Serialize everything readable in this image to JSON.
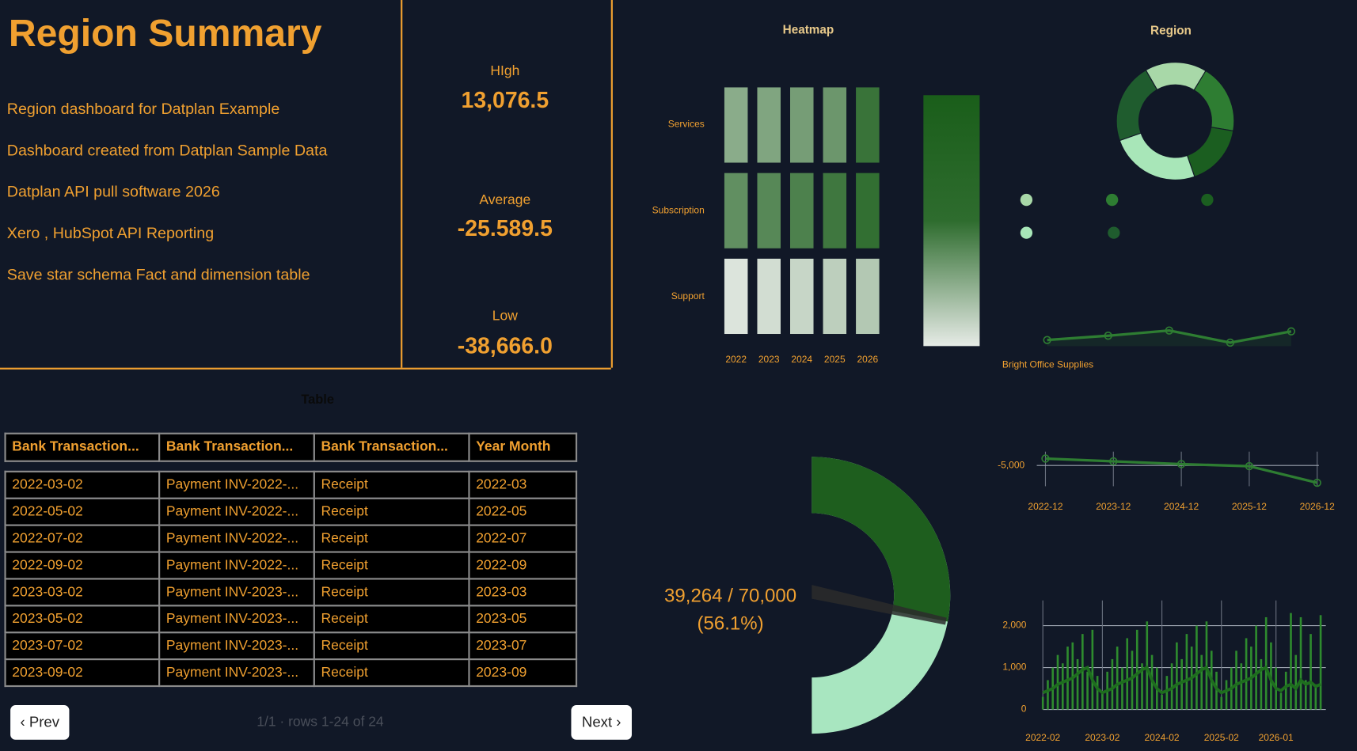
{
  "summary": {
    "title": "Region Summary",
    "lines": [
      "Region dashboard for Datplan Example",
      "Dashboard created from Datplan Sample Data",
      "Datplan API pull software 2026",
      "Xero , HubSpot API Reporting",
      "Save star schema Fact and dimension table"
    ]
  },
  "kpis": [
    {
      "label": "HIgh",
      "value": "13,076.5"
    },
    {
      "label": "Average",
      "value": "-25.589.5"
    },
    {
      "label": "Low",
      "value": "-38,666.0"
    }
  ],
  "table": {
    "title": "Table",
    "columns": [
      "Bank Transaction...",
      "Bank Transaction...",
      "Bank Transaction...",
      "Year Month"
    ],
    "rows": [
      [
        "2022-03-02",
        "Payment INV-2022-...",
        "Receipt",
        "2022-03"
      ],
      [
        "2022-05-02",
        "Payment INV-2022-...",
        "Receipt",
        "2022-05"
      ],
      [
        "2022-07-02",
        "Payment INV-2022-...",
        "Receipt",
        "2022-07"
      ],
      [
        "2022-09-02",
        "Payment INV-2022-...",
        "Receipt",
        "2022-09"
      ],
      [
        "2023-03-02",
        "Payment INV-2023-...",
        "Receipt",
        "2023-03"
      ],
      [
        "2023-05-02",
        "Payment INV-2023-...",
        "Receipt",
        "2023-05"
      ],
      [
        "2023-07-02",
        "Payment INV-2023-...",
        "Receipt",
        "2023-07"
      ],
      [
        "2023-09-02",
        "Payment INV-2023-...",
        "Receipt",
        "2023-09"
      ]
    ]
  },
  "pagination": {
    "prev": "‹ Prev",
    "status": "1/1 · rows 1-24 of 24",
    "next": "Next ›"
  },
  "chart_data": [
    {
      "type": "heatmap",
      "title": "Heatmap",
      "x": [
        "2022",
        "2023",
        "2024",
        "2025",
        "2026"
      ],
      "y": [
        "Services",
        "Subscription",
        "Support"
      ],
      "values": [
        [
          45,
          50,
          55,
          60,
          85
        ],
        [
          65,
          70,
          75,
          82,
          88
        ],
        [
          5,
          10,
          15,
          20,
          25
        ]
      ],
      "zlim": [
        0,
        100
      ],
      "colors": [
        "#e6ebe6",
        "#1a5e1a"
      ]
    },
    {
      "type": "donut",
      "title": "Region",
      "categories": [
        null,
        null,
        null,
        null,
        null
      ],
      "values": [
        17,
        19,
        17,
        25,
        22
      ],
      "colors": [
        "#a8d8a8",
        "#2e7d32",
        "#1b5e20",
        "#a8e6b8",
        "#1f5c2e"
      ]
    },
    {
      "type": "line",
      "xlabel": "Bright Office Supplies",
      "values": [
        7,
        12,
        18,
        4,
        17
      ],
      "ylim": [
        0,
        25
      ],
      "color": "#2e7d32"
    },
    {
      "type": "line",
      "categories": [
        "2022-12",
        "2023-12",
        "2024-12",
        "2025-12",
        "2026-12"
      ],
      "values": [
        -4000,
        -4400,
        -4800,
        -5100,
        -7500
      ],
      "ylim": [
        -8000,
        -3000
      ],
      "yticks": [
        {
          "value": -5000,
          "label": "-5,000"
        }
      ],
      "color": "#2e7d32",
      "grid": true
    },
    {
      "type": "gauge",
      "value": 39264,
      "max": 70000,
      "value_label": "39,264 / 70,000",
      "percent_label": "(56.1%)",
      "colors": [
        "#1e5e1e",
        "#a8e6c0"
      ]
    },
    {
      "type": "bar_line",
      "categories": [
        "2022-02",
        null,
        null,
        null,
        null,
        null,
        null,
        null,
        null,
        null,
        null,
        null,
        "2023-02",
        null,
        null,
        null,
        null,
        null,
        null,
        null,
        null,
        null,
        null,
        null,
        "2024-02",
        null,
        null,
        null,
        null,
        null,
        null,
        null,
        null,
        null,
        null,
        null,
        "2025-02",
        null,
        null,
        null,
        null,
        null,
        null,
        null,
        null,
        null,
        null,
        "2026-01",
        null,
        null,
        null,
        null,
        null,
        null,
        null,
        null,
        null
      ],
      "series": [
        {
          "type": "bar",
          "color": "#2e8b2e",
          "values": [
            300,
            700,
            1000,
            1300,
            1100,
            1500,
            1600,
            1200,
            1800,
            900,
            1900,
            800,
            400,
            900,
            1200,
            1500,
            1000,
            1700,
            1400,
            1900,
            1100,
            2100,
            1300,
            1000,
            350,
            800,
            1100,
            1600,
            1200,
            1800,
            1500,
            2000,
            1300,
            2100,
            1400,
            900,
            300,
            700,
            1000,
            1400,
            1100,
            1700,
            1500,
            2000,
            1200,
            2200,
            1600,
            1000,
            400,
            900,
            2300,
            1300,
            2200,
            700,
            1800,
            600,
            2250
          ]
        },
        {
          "type": "line",
          "color": "#1e6e1e",
          "values": [
            400,
            450,
            500,
            600,
            650,
            700,
            750,
            850,
            950,
            1000,
            700,
            500,
            400,
            450,
            500,
            600,
            650,
            700,
            750,
            850,
            950,
            1000,
            700,
            500,
            400,
            450,
            500,
            600,
            650,
            700,
            750,
            850,
            950,
            1000,
            700,
            500,
            400,
            450,
            500,
            600,
            650,
            700,
            750,
            850,
            950,
            1000,
            700,
            500,
            450,
            550,
            600,
            500,
            700,
            600,
            650,
            550,
            600
          ]
        }
      ],
      "ylim": [
        0,
        2600
      ],
      "yticks": [
        0,
        {
          "value": 1000,
          "label": "1,000"
        },
        {
          "value": 2000,
          "label": "2,000"
        }
      ],
      "grid": true
    }
  ]
}
